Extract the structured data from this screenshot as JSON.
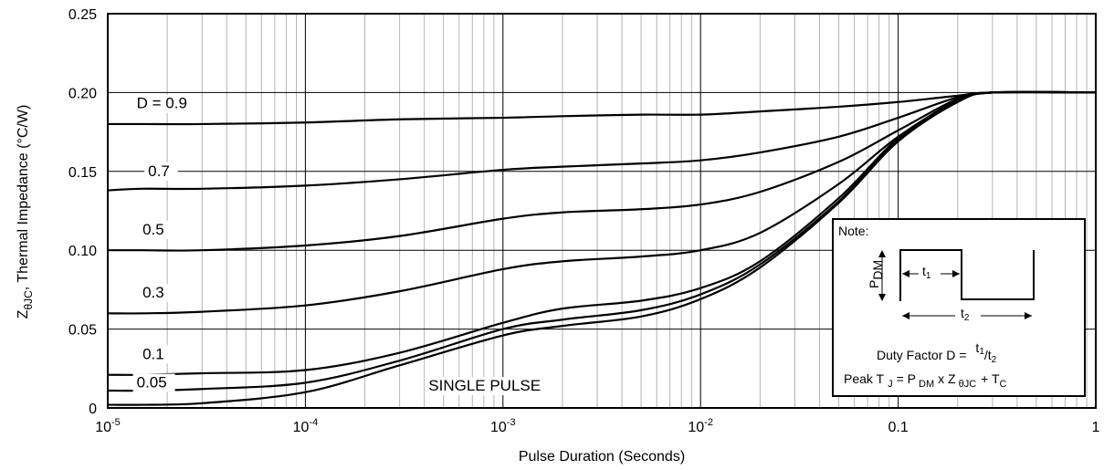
{
  "chart_data": {
    "type": "line",
    "xlabel": "Pulse Duration (Seconds)",
    "ylabel_main": "Z",
    "ylabel_sub": "θJC",
    "ylabel_rest": ", Thermal Impedance (°C/W)",
    "xscale": "log",
    "xlim": [
      1e-05,
      1
    ],
    "ylim": [
      0,
      0.25
    ],
    "grid": true,
    "x_ticks": [
      {
        "base": "10",
        "exp": "-5"
      },
      {
        "base": "10",
        "exp": "-4"
      },
      {
        "base": "10",
        "exp": "-3"
      },
      {
        "base": "10",
        "exp": "-2"
      },
      {
        "base": "0.1",
        "exp": ""
      },
      {
        "base": "1",
        "exp": ""
      }
    ],
    "y_ticks": [
      "0",
      "0.05",
      "0.10",
      "0.15",
      "0.20",
      "0.25"
    ],
    "y_tick_values": [
      0,
      0.05,
      0.1,
      0.15,
      0.2,
      0.25
    ],
    "x": [
      1e-05,
      1.5e-05,
      3e-05,
      0.0001,
      0.0003,
      0.001,
      0.002,
      0.005,
      0.01,
      0.02,
      0.05,
      0.1,
      0.2,
      0.3,
      1
    ],
    "series": [
      {
        "name": "D = 0.9",
        "values": [
          0.18,
          0.18,
          0.18,
          0.181,
          0.183,
          0.184,
          0.185,
          0.186,
          0.186,
          0.188,
          0.191,
          0.194,
          0.198,
          0.2,
          0.2
        ]
      },
      {
        "name": "0.7",
        "values": [
          0.138,
          0.139,
          0.139,
          0.141,
          0.145,
          0.151,
          0.153,
          0.155,
          0.157,
          0.162,
          0.172,
          0.184,
          0.197,
          0.2,
          0.2
        ]
      },
      {
        "name": "0.5",
        "values": [
          0.1,
          0.1,
          0.1,
          0.103,
          0.109,
          0.12,
          0.124,
          0.126,
          0.129,
          0.137,
          0.156,
          0.176,
          0.196,
          0.2,
          0.2
        ]
      },
      {
        "name": "0.3",
        "values": [
          0.06,
          0.06,
          0.061,
          0.065,
          0.074,
          0.088,
          0.093,
          0.096,
          0.1,
          0.111,
          0.142,
          0.172,
          0.195,
          0.2,
          0.2
        ]
      },
      {
        "name": "0.1",
        "values": [
          0.021,
          0.021,
          0.022,
          0.024,
          0.035,
          0.054,
          0.063,
          0.068,
          0.076,
          0.093,
          0.133,
          0.171,
          0.195,
          0.2,
          0.2
        ]
      },
      {
        "name": "0.05",
        "values": [
          0.011,
          0.011,
          0.012,
          0.016,
          0.03,
          0.05,
          0.056,
          0.062,
          0.072,
          0.091,
          0.131,
          0.17,
          0.194,
          0.2,
          0.2
        ]
      },
      {
        "name": "SINGLE PULSE",
        "values": [
          0.002,
          0.002,
          0.003,
          0.01,
          0.027,
          0.046,
          0.052,
          0.058,
          0.069,
          0.089,
          0.13,
          0.169,
          0.194,
          0.2,
          0.2
        ]
      }
    ],
    "curve_labels": [
      {
        "text": "D = 0.9",
        "x": 1.4e-05,
        "y": 0.19
      },
      {
        "text": "0.7",
        "x": 1.6e-05,
        "y": 0.147
      },
      {
        "text": "0.5",
        "x": 1.5e-05,
        "y": 0.11
      },
      {
        "text": "0.3",
        "x": 1.5e-05,
        "y": 0.07
      },
      {
        "text": "0.1",
        "x": 1.5e-05,
        "y": 0.031
      },
      {
        "text": "0.05",
        "x": 1.4e-05,
        "y": 0.013
      },
      {
        "text": "SINGLE PULSE",
        "x": 0.00042,
        "y": 0.011
      }
    ],
    "legend_position": "inside-right",
    "note": {
      "title": "Note:",
      "pdm_label": "P",
      "pdm_sub": "DM",
      "t1_label": "t",
      "t1_sub": "1",
      "t2_label": "t",
      "t2_sub": "2",
      "duty_text": "Duty Factor D =",
      "duty_t1": "t",
      "duty_t1_sub": "1",
      "duty_slash": "/t",
      "duty_t2_sub": "2",
      "peak_a": "Peak T",
      "peak_a_sub": "J",
      "peak_b": "= P",
      "peak_b_sub": "DM",
      "peak_c": "x Z",
      "peak_c_sub": "θJC",
      "peak_d": "+ T",
      "peak_d_sub": "C"
    }
  }
}
